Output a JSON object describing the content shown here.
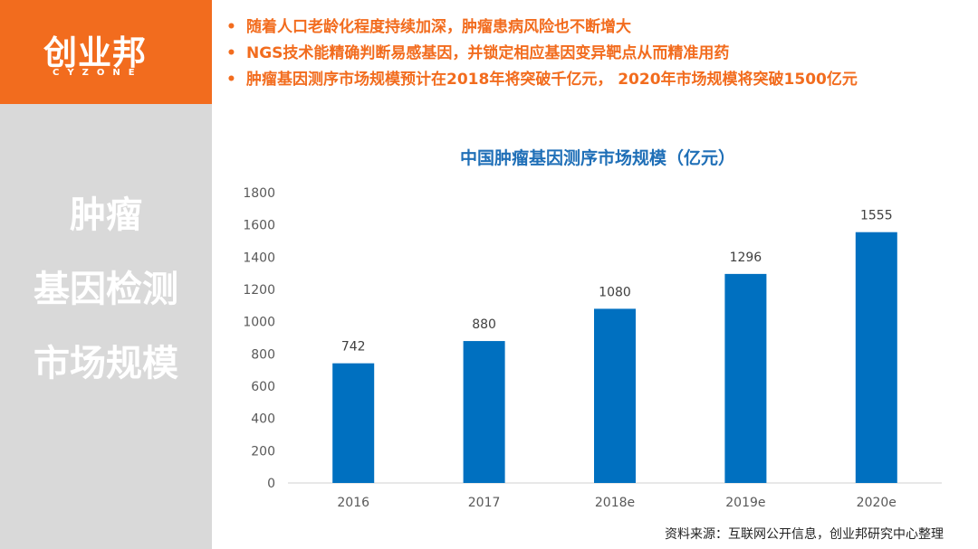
{
  "brand": {
    "name": "创业邦",
    "subtitle": "CYZONE",
    "accent_color": "#f26c1e"
  },
  "side_title": {
    "lines": [
      "肿瘤",
      "基因检测",
      "市场规模"
    ]
  },
  "bullets": [
    "随着人口老龄化程度持续加深，肿瘤患病风险也不断增大",
    "NGS技术能精确判断易感基因，并锁定相应基因变异靶点从而精准用药",
    "肿瘤基因测序市场规模预计在2018年将突破千亿元， 2020年市场规模将突破1500亿元"
  ],
  "bullet_marker": "•",
  "source_note": "资料来源：互联网公开信息，创业邦研究中心整理",
  "chart_data": {
    "type": "bar",
    "title": "中国肿瘤基因测序市场规模（亿元）",
    "categories": [
      "2016",
      "2017",
      "2018e",
      "2019e",
      "2020e"
    ],
    "values": [
      742,
      880,
      1080,
      1296,
      1555
    ],
    "ylim": [
      0,
      1800
    ],
    "yticks": [
      0,
      200,
      400,
      600,
      800,
      1000,
      1200,
      1400,
      1600,
      1800
    ],
    "bar_color": "#0070c0",
    "grid": false,
    "legend": "none"
  }
}
